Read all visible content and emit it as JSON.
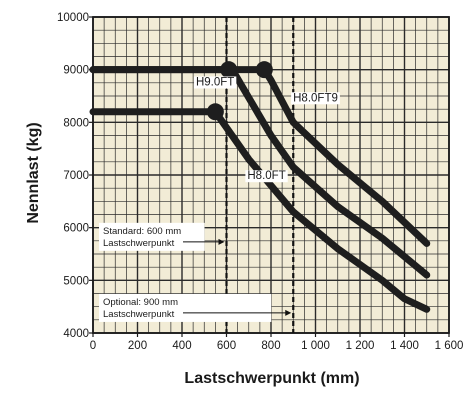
{
  "chart_data": {
    "type": "line",
    "xlabel": "Lastschwerpunkt (mm)",
    "ylabel": "Nennlast (kg)",
    "xlim": [
      0,
      1600
    ],
    "ylim": [
      4000,
      10000
    ],
    "x_ticks": [
      0,
      200,
      400,
      600,
      800,
      1000,
      1200,
      1400,
      1600
    ],
    "x_tick_labels": [
      "0",
      "200",
      "400",
      "600",
      "800",
      "1 000",
      "1 200",
      "1 400",
      "1 600"
    ],
    "y_ticks": [
      4000,
      5000,
      6000,
      7000,
      8000,
      9000,
      10000
    ],
    "y_tick_labels": [
      "4000",
      "5000",
      "6000",
      "7000",
      "8000",
      "9000",
      "10000"
    ],
    "grid": true,
    "background_color": "#f2ecd6",
    "line_color": "#1e1e1e",
    "series": [
      {
        "name": "H9.0FT",
        "x": [
          0,
          610,
          640,
          800,
          900,
          1100,
          1300,
          1500
        ],
        "y": [
          9000,
          9000,
          8900,
          7750,
          7150,
          6400,
          5800,
          5100
        ],
        "marker_points": [
          [
            610,
            9000
          ]
        ]
      },
      {
        "name": "H8.0FT9",
        "x": [
          0,
          770,
          800,
          900,
          1100,
          1300,
          1500
        ],
        "y": [
          9000,
          9000,
          8800,
          8000,
          7200,
          6500,
          5700
        ],
        "marker_points": [
          [
            770,
            9000
          ]
        ]
      },
      {
        "name": "H8.0FT",
        "x": [
          0,
          550,
          600,
          700,
          900,
          1100,
          1300,
          1400,
          1500
        ],
        "y": [
          8200,
          8200,
          7900,
          7300,
          6300,
          5600,
          5000,
          4650,
          4450
        ],
        "marker_points": [
          [
            550,
            8200
          ]
        ]
      }
    ],
    "reference_lines": [
      {
        "x": 600,
        "style": "dashed"
      },
      {
        "x": 900,
        "style": "dashed"
      }
    ],
    "annotations": [
      {
        "lines": [
          "Standard: 600 mm",
          "Lastschwerpunkt"
        ],
        "arrow_to_x": 600,
        "y": 5750
      },
      {
        "lines": [
          "Optional: 900 mm",
          "Lastschwerpunkt"
        ],
        "arrow_to_x": 900,
        "y": 4400
      }
    ]
  }
}
